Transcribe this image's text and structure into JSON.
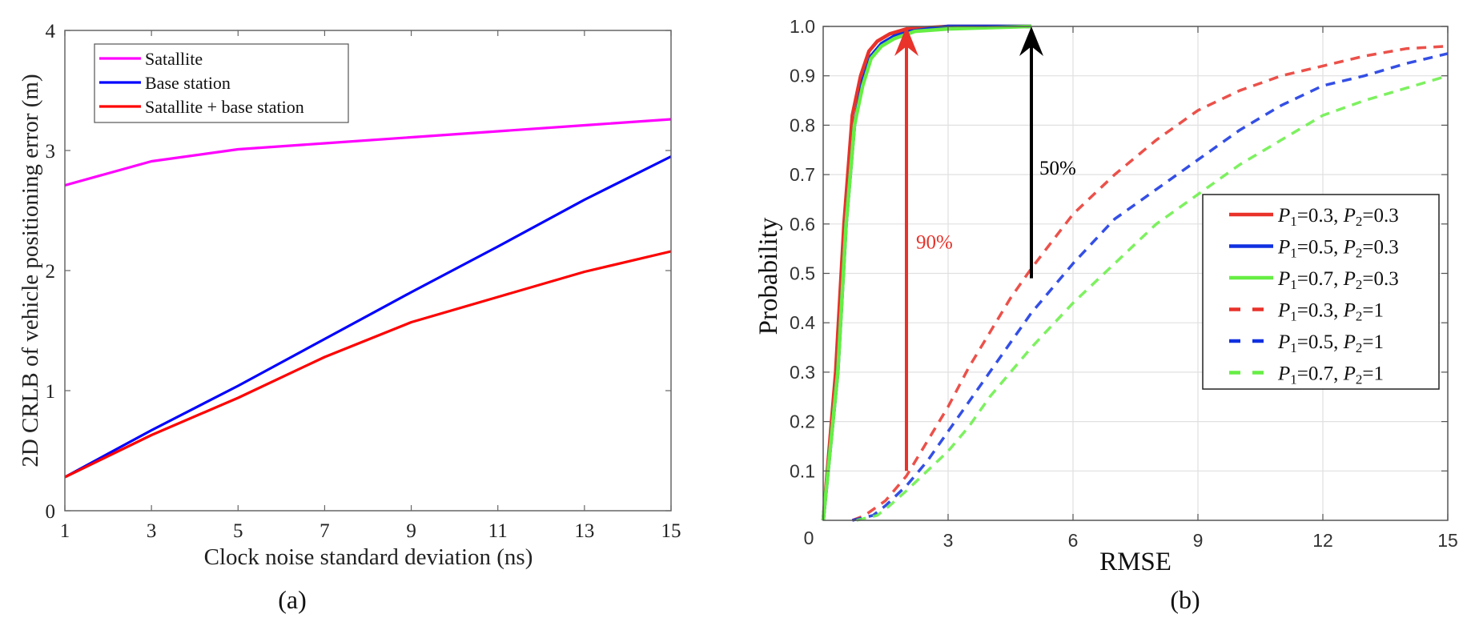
{
  "chart_data": [
    {
      "id": "a",
      "type": "line",
      "caption": "(a)",
      "title": "",
      "xlabel": "Clock noise standard deviation (ns)",
      "ylabel": "2D CRLB of  vehicle positioning error (m)",
      "xlim": [
        1,
        15
      ],
      "ylim": [
        0,
        4
      ],
      "xticks": [
        1,
        3,
        5,
        7,
        9,
        11,
        13,
        15
      ],
      "yticks": [
        0,
        1,
        2,
        3,
        4
      ],
      "grid": false,
      "legend_position": "top-left",
      "x": [
        1,
        3,
        5,
        7,
        9,
        11,
        13,
        15
      ],
      "series": [
        {
          "name": "Satallite",
          "color": "#ff00ff",
          "style": "solid",
          "values": [
            2.71,
            2.91,
            3.01,
            3.06,
            3.11,
            3.16,
            3.21,
            3.26
          ]
        },
        {
          "name": "Base station",
          "color": "#0000ff",
          "style": "solid",
          "values": [
            0.28,
            0.67,
            1.04,
            1.43,
            1.82,
            2.2,
            2.59,
            2.95
          ]
        },
        {
          "name": "Satallite + base station",
          "color": "#ff0000",
          "style": "solid",
          "values": [
            0.28,
            0.63,
            0.94,
            1.28,
            1.57,
            1.78,
            1.99,
            2.16
          ]
        }
      ]
    },
    {
      "id": "b",
      "type": "line",
      "caption": "(b)",
      "title": "",
      "xlabel": "RMSE",
      "ylabel": "Probability",
      "xlim": [
        0,
        15
      ],
      "ylim": [
        0,
        1.0
      ],
      "xticks": [
        0,
        3,
        6,
        9,
        12,
        15
      ],
      "xtick_labels": [
        "0",
        "3",
        "6",
        "9",
        "12",
        "15"
      ],
      "yticks": [
        0.1,
        0.2,
        0.3,
        0.4,
        0.5,
        0.6,
        0.7,
        0.8,
        0.9,
        1.0
      ],
      "ytick_labels": [
        "0.1",
        "0.2",
        "0.3",
        "0.4",
        "0.5",
        "0.6",
        "0.7",
        "0.8",
        "0.9",
        "1.0"
      ],
      "origin_label": "0",
      "grid": true,
      "legend_position": "center-right",
      "series": [
        {
          "name": "P1=0.3, P2=0.3",
          "p1": "0.3",
          "p2": "0.3",
          "color": "#e8322a",
          "style": "solid",
          "x": [
            0.0,
            0.3,
            0.5,
            0.7,
            0.9,
            1.1,
            1.3,
            1.6,
            2.0,
            3.0,
            5.0
          ],
          "values": [
            0.0,
            0.3,
            0.6,
            0.82,
            0.9,
            0.95,
            0.97,
            0.985,
            0.995,
            1.0,
            1.0
          ]
        },
        {
          "name": "P1=0.5, P2=0.3",
          "p1": "0.5",
          "p2": "0.3",
          "color": "#1030e0",
          "style": "solid",
          "x": [
            0.0,
            0.35,
            0.55,
            0.75,
            0.95,
            1.15,
            1.4,
            1.7,
            2.1,
            3.0,
            5.0
          ],
          "values": [
            0.0,
            0.3,
            0.6,
            0.8,
            0.89,
            0.94,
            0.965,
            0.98,
            0.99,
            1.0,
            1.0
          ]
        },
        {
          "name": "P1=0.7, P2=0.3",
          "p1": "0.7",
          "p2": "0.3",
          "color": "#66ee44",
          "style": "solid",
          "x": [
            0.0,
            0.35,
            0.55,
            0.75,
            0.95,
            1.15,
            1.4,
            1.7,
            2.2,
            3.0,
            5.0
          ],
          "values": [
            0.0,
            0.3,
            0.6,
            0.8,
            0.88,
            0.935,
            0.96,
            0.975,
            0.99,
            0.995,
            1.0
          ]
        },
        {
          "name": "P1=0.3, P2=1",
          "p1": "0.3",
          "p2": "1",
          "color": "#e8322a",
          "style": "dashed",
          "x": [
            0.7,
            1.0,
            1.5,
            2.0,
            2.5,
            3.0,
            3.5,
            4.0,
            4.5,
            5.0,
            6.0,
            7.0,
            8.0,
            9.0,
            10.0,
            11.0,
            12.0,
            13.0,
            14.0,
            15.0
          ],
          "values": [
            0.0,
            0.01,
            0.04,
            0.09,
            0.16,
            0.23,
            0.31,
            0.38,
            0.45,
            0.51,
            0.62,
            0.7,
            0.77,
            0.83,
            0.87,
            0.9,
            0.92,
            0.94,
            0.955,
            0.96
          ]
        },
        {
          "name": "P1=0.5, P2=1",
          "p1": "0.5",
          "p2": "1",
          "color": "#1030e0",
          "style": "dashed",
          "x": [
            0.7,
            1.2,
            1.5,
            2.0,
            2.5,
            3.0,
            3.5,
            4.0,
            4.5,
            5.0,
            6.0,
            7.0,
            8.0,
            9.0,
            10.0,
            11.0,
            12.0,
            13.0,
            14.0,
            15.0
          ],
          "values": [
            0.0,
            0.01,
            0.03,
            0.07,
            0.12,
            0.18,
            0.24,
            0.3,
            0.36,
            0.42,
            0.52,
            0.61,
            0.67,
            0.73,
            0.79,
            0.84,
            0.88,
            0.9,
            0.925,
            0.945
          ]
        },
        {
          "name": "P1=0.7, P2=1",
          "p1": "0.7",
          "p2": "1",
          "color": "#66ee44",
          "style": "dashed",
          "x": [
            0.8,
            1.3,
            1.6,
            2.0,
            2.5,
            3.0,
            3.5,
            4.0,
            4.5,
            5.0,
            6.0,
            7.0,
            8.0,
            9.0,
            10.0,
            11.0,
            12.0,
            13.0,
            14.0,
            15.0
          ],
          "values": [
            0.0,
            0.01,
            0.03,
            0.06,
            0.1,
            0.14,
            0.19,
            0.25,
            0.3,
            0.35,
            0.44,
            0.52,
            0.6,
            0.66,
            0.72,
            0.77,
            0.82,
            0.85,
            0.875,
            0.9
          ]
        }
      ],
      "annotations": [
        {
          "label": "90%",
          "color": "#e8322a",
          "x": 2.0,
          "y_from": 0.1,
          "y_to": 1.0,
          "type": "arrow-up"
        },
        {
          "label": "50%",
          "color": "#000000",
          "x": 5.0,
          "y_from": 0.49,
          "y_to": 1.0,
          "type": "arrow-up"
        }
      ]
    }
  ]
}
